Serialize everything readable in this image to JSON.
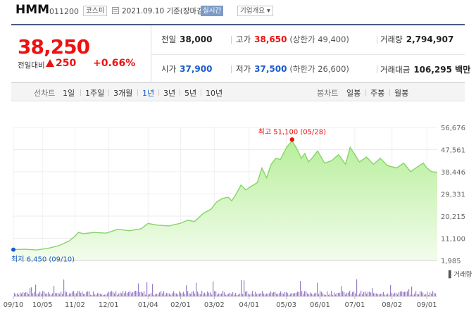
{
  "header": {
    "company": "HMM",
    "code": "011200",
    "market": "코스피",
    "date": "2021.09.10 기준(장마감)",
    "realtime_label": "실시간",
    "company_info_label": "기업개요 ▾"
  },
  "quote": {
    "price": "38,250",
    "prev_label": "전일대비",
    "change": "250",
    "rate": "+0.66%",
    "prev_close_label": "전일",
    "prev_close": "38,000",
    "open_label": "시가",
    "open": "37,900",
    "high_label": "고가",
    "high": "38,650",
    "upper_limit": "(상한가 49,400)",
    "low_label": "저가",
    "low": "37,500",
    "lower_limit": "(하한가 26,600)",
    "volume_label": "거래량",
    "volume": "2,794,907",
    "amount_label": "거래대금",
    "amount": "106,295 백만"
  },
  "tabs": {
    "line_label": "선차트",
    "periods": [
      "1일",
      "1주일",
      "3개월",
      "1년",
      "3년",
      "5년",
      "10년"
    ],
    "active_period": "1년",
    "candle_label": "봉차트",
    "candles": [
      "일봉",
      "주봉",
      "월봉"
    ]
  },
  "colors": {
    "up": "#ee1111",
    "down": "#1a5cc8",
    "line": "#86d468",
    "volume_bar": "#9a7cc8"
  },
  "chart_data": {
    "type": "area",
    "title": "",
    "y_ticks": [
      "56,676",
      "47,561",
      "38,446",
      "29,331",
      "20,215",
      "11,100",
      "1,985"
    ],
    "ylim": [
      1985,
      56676
    ],
    "x_tick_labels": [
      "09/10",
      "10/05",
      "11/02",
      "12/01",
      "01/04",
      "02/01",
      "03/02",
      "04/01",
      "05/03",
      "06/01",
      "07/01",
      "08/02",
      "09/01"
    ],
    "x_tick_days": [
      0,
      25,
      53,
      82,
      116,
      144,
      173,
      203,
      235,
      264,
      294,
      326,
      356
    ],
    "days_total": 365,
    "price_series": {
      "x": [
        0,
        10,
        20,
        30,
        40,
        48,
        53,
        56,
        60,
        70,
        80,
        90,
        100,
        110,
        116,
        124,
        134,
        144,
        150,
        156,
        164,
        170,
        175,
        180,
        185,
        188,
        191,
        196,
        200,
        205,
        210,
        214,
        218,
        222,
        226,
        230,
        233,
        236,
        240,
        244,
        248,
        251,
        254,
        258,
        262,
        268,
        274,
        280,
        286,
        290,
        294,
        298,
        304,
        310,
        316,
        322,
        330,
        336,
        342,
        348,
        353,
        356,
        360,
        365
      ],
      "y": [
        6450,
        6600,
        6300,
        7000,
        8200,
        10000,
        11900,
        13500,
        13000,
        13500,
        13200,
        14800,
        14200,
        15000,
        17200,
        16500,
        16200,
        17300,
        18500,
        18000,
        21500,
        23000,
        26000,
        27500,
        28000,
        26500,
        28600,
        33000,
        31000,
        32500,
        34000,
        40000,
        36000,
        41500,
        44000,
        43500,
        46500,
        49000,
        51100,
        48000,
        44000,
        46000,
        42500,
        44500,
        47000,
        42000,
        43000,
        45500,
        41500,
        48500,
        45500,
        42500,
        44500,
        41500,
        44000,
        41000,
        40000,
        42000,
        38500,
        40500,
        42000,
        40000,
        38500,
        38250
      ]
    },
    "high_annotation": {
      "label": "최고 51,100 (05/28)",
      "value": 51100,
      "date": "05/28"
    },
    "low_annotation": {
      "label": "최저 6,450 (09/10)",
      "value": 6450,
      "date": "09/10"
    },
    "volume_label": "거래량"
  }
}
